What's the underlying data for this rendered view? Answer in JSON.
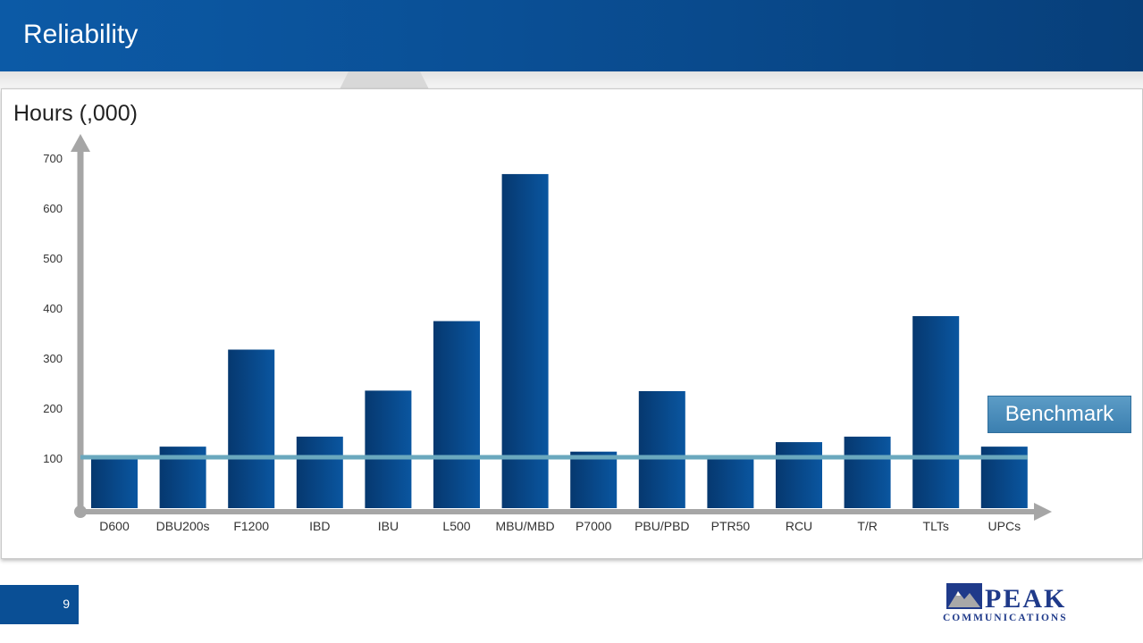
{
  "slide": {
    "title": "Reliability",
    "page_number": "9"
  },
  "logo": {
    "name": "PEAK",
    "tagline": "COMMUNICATIONS"
  },
  "benchmark": {
    "label": "Benchmark",
    "value": 100
  },
  "colors": {
    "header": "#0a4f95",
    "bar_dark": "#06386f",
    "bar_light": "#0a56a0",
    "benchmark_line": "#6aa8be",
    "axis": "#a6a6a6"
  },
  "chart_data": {
    "type": "bar",
    "title": "Hours (,000)",
    "xlabel": "",
    "ylabel": "",
    "categories": [
      "D600",
      "DBU200s",
      "F1200",
      "IBD",
      "IBU",
      "L500",
      "MBU/MBD",
      "P7000",
      "PBU/PBD",
      "PTR50",
      "RCU",
      "T/R",
      "TLTs",
      "UPCs"
    ],
    "values": [
      100,
      123,
      317,
      143,
      235,
      374,
      668,
      113,
      234,
      105,
      132,
      143,
      384,
      123
    ],
    "yticks": [
      100,
      200,
      300,
      400,
      500,
      600,
      700
    ],
    "ylim": [
      0,
      700
    ],
    "reference_line": {
      "label": "Benchmark",
      "value": 100
    },
    "grid": false,
    "legend": "none"
  }
}
